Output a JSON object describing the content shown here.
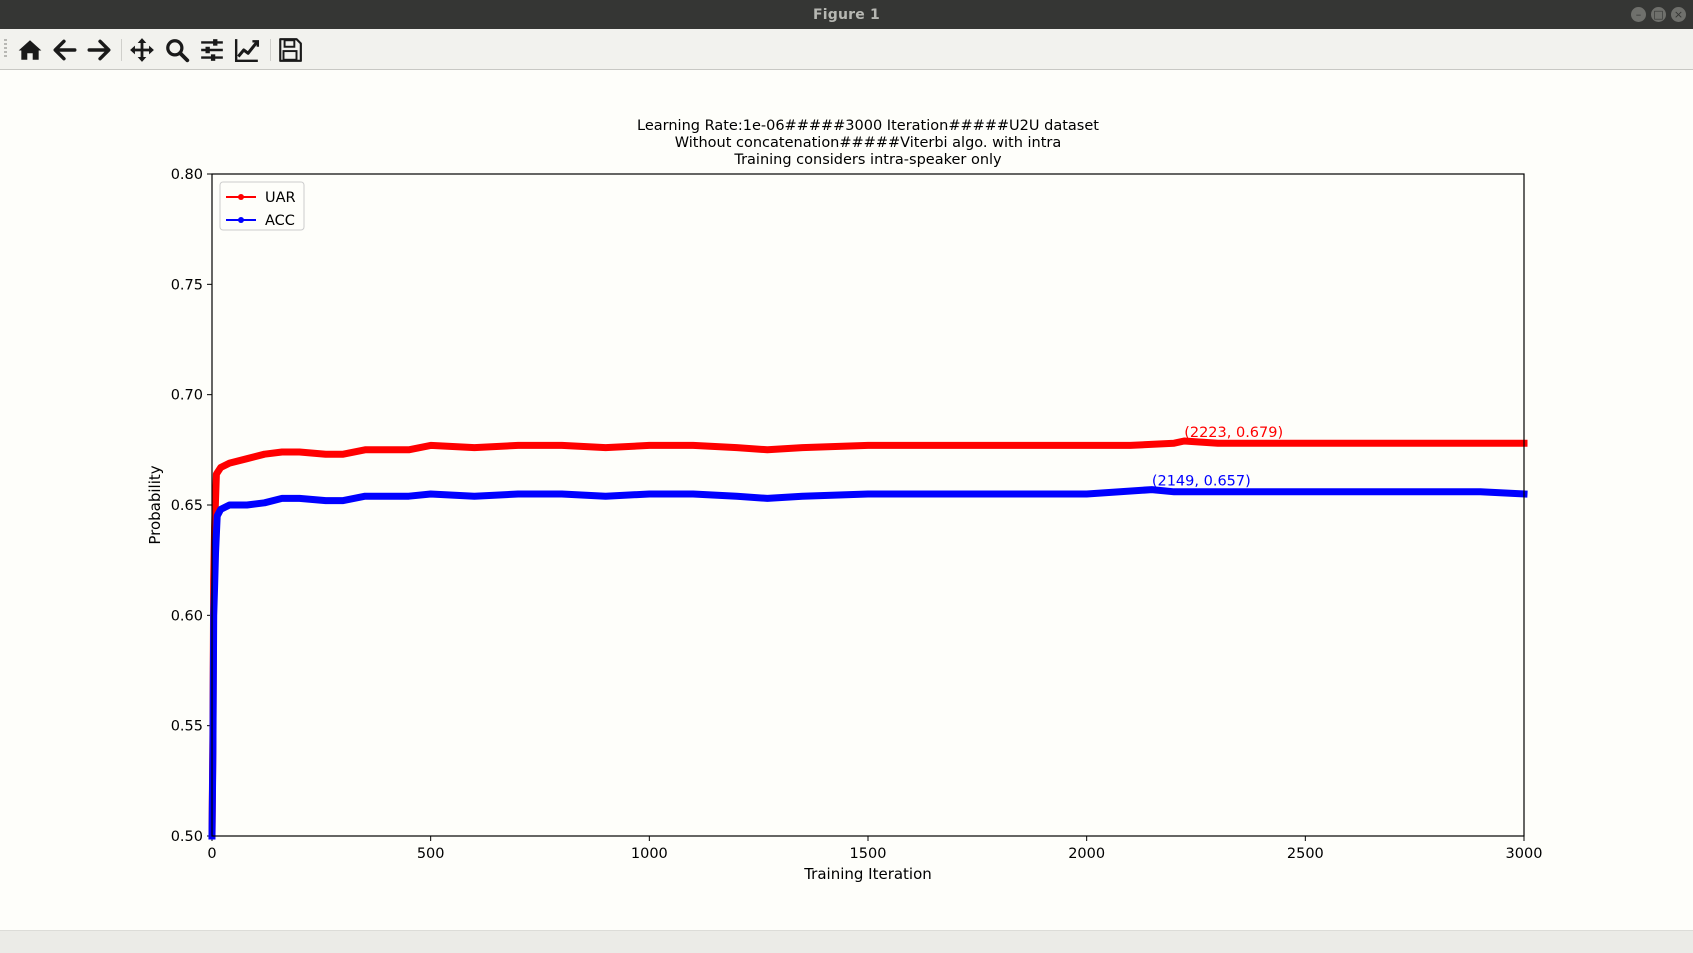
{
  "window": {
    "title": "Figure 1"
  },
  "toolbar": {
    "buttons": [
      {
        "icon": "home-icon",
        "label": "Home"
      },
      {
        "icon": "back-arrow-icon",
        "label": "Back"
      },
      {
        "icon": "forward-arrow-icon",
        "label": "Forward"
      },
      {
        "icon": "pan-move-icon",
        "label": "Pan"
      },
      {
        "icon": "zoom-magnifier-icon",
        "label": "Zoom"
      },
      {
        "icon": "configure-subplots-icon",
        "label": "Subplots"
      },
      {
        "icon": "edit-axis-curve-icon",
        "label": "Customize"
      },
      {
        "icon": "save-floppy-icon",
        "label": "Save"
      }
    ]
  },
  "colors": {
    "uar": "#ff0000",
    "acc": "#0000ff",
    "frame": "#000000",
    "background": "#fefefa"
  },
  "chart_data": {
    "type": "line",
    "title": "Learning Rate:1e-06#####3000 Iteration#####U2U dataset",
    "title_lines": [
      "Learning Rate:1e-06#####3000 Iteration#####U2U dataset",
      "Without concatenation#####Viterbi algo. with intra",
      "Training considers intra-speaker only"
    ],
    "xlabel": "Training Iteration",
    "ylabel": "Probability",
    "xlim": [
      0,
      3000
    ],
    "ylim": [
      0.5,
      0.8
    ],
    "xticks": [
      0,
      500,
      1000,
      1500,
      2000,
      2500,
      3000
    ],
    "yticks": [
      0.5,
      0.55,
      0.6,
      0.65,
      0.7,
      0.75,
      0.8
    ],
    "ytick_labels": [
      "0.50",
      "0.55",
      "0.60",
      "0.65",
      "0.70",
      "0.75",
      "0.80"
    ],
    "legend": {
      "position": "upper-left",
      "entries": [
        "UAR",
        "ACC"
      ]
    },
    "grid": false,
    "series": [
      {
        "name": "UAR",
        "color": "#ff0000",
        "points": [
          [
            0,
            0.5
          ],
          [
            2,
            0.544
          ],
          [
            4,
            0.616
          ],
          [
            6,
            0.64
          ],
          [
            10,
            0.664
          ],
          [
            20,
            0.667
          ],
          [
            40,
            0.669
          ],
          [
            80,
            0.671
          ],
          [
            120,
            0.673
          ],
          [
            160,
            0.674
          ],
          [
            200,
            0.674
          ],
          [
            260,
            0.673
          ],
          [
            300,
            0.673
          ],
          [
            350,
            0.675
          ],
          [
            400,
            0.675
          ],
          [
            450,
            0.675
          ],
          [
            500,
            0.677
          ],
          [
            600,
            0.676
          ],
          [
            700,
            0.677
          ],
          [
            800,
            0.677
          ],
          [
            900,
            0.676
          ],
          [
            1000,
            0.677
          ],
          [
            1100,
            0.677
          ],
          [
            1200,
            0.676
          ],
          [
            1270,
            0.675
          ],
          [
            1350,
            0.676
          ],
          [
            1500,
            0.677
          ],
          [
            1600,
            0.677
          ],
          [
            1800,
            0.677
          ],
          [
            2000,
            0.677
          ],
          [
            2100,
            0.677
          ],
          [
            2200,
            0.678
          ],
          [
            2223,
            0.679
          ],
          [
            2300,
            0.678
          ],
          [
            2500,
            0.678
          ],
          [
            2700,
            0.678
          ],
          [
            2800,
            0.678
          ],
          [
            3000,
            0.678
          ]
        ]
      },
      {
        "name": "ACC",
        "color": "#0000ff",
        "points": [
          [
            0,
            0.5
          ],
          [
            2,
            0.538
          ],
          [
            4,
            0.6
          ],
          [
            6,
            0.613
          ],
          [
            8,
            0.628
          ],
          [
            12,
            0.645
          ],
          [
            20,
            0.648
          ],
          [
            40,
            0.65
          ],
          [
            80,
            0.65
          ],
          [
            120,
            0.651
          ],
          [
            160,
            0.653
          ],
          [
            200,
            0.653
          ],
          [
            260,
            0.652
          ],
          [
            300,
            0.652
          ],
          [
            350,
            0.654
          ],
          [
            400,
            0.654
          ],
          [
            450,
            0.654
          ],
          [
            500,
            0.655
          ],
          [
            600,
            0.654
          ],
          [
            700,
            0.655
          ],
          [
            800,
            0.655
          ],
          [
            900,
            0.654
          ],
          [
            1000,
            0.655
          ],
          [
            1100,
            0.655
          ],
          [
            1200,
            0.654
          ],
          [
            1270,
            0.653
          ],
          [
            1350,
            0.654
          ],
          [
            1500,
            0.655
          ],
          [
            1600,
            0.655
          ],
          [
            1800,
            0.655
          ],
          [
            2000,
            0.655
          ],
          [
            2149,
            0.657
          ],
          [
            2200,
            0.656
          ],
          [
            2300,
            0.656
          ],
          [
            2500,
            0.656
          ],
          [
            2700,
            0.656
          ],
          [
            2900,
            0.656
          ],
          [
            3000,
            0.655
          ]
        ]
      }
    ],
    "annotations": [
      {
        "text": "(2223, 0.679)",
        "x": 2223,
        "y": 0.679,
        "color": "#ff0000"
      },
      {
        "text": "(2149, 0.657)",
        "x": 2149,
        "y": 0.657,
        "color": "#0000ff"
      }
    ]
  }
}
